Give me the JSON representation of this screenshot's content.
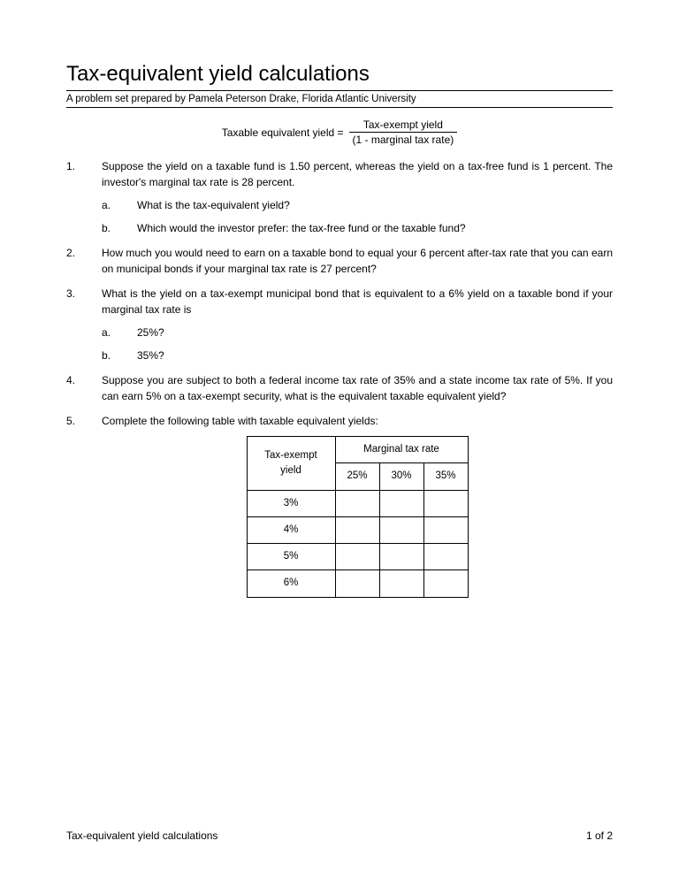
{
  "title": "Tax-equivalent yield calculations",
  "subtitle": "A problem set prepared by Pamela Peterson Drake, Florida Atlantic University",
  "formula": {
    "left": "Taxable equivalent yield =",
    "numerator": "Tax-exempt yield",
    "denominator": "(1 - marginal tax rate)"
  },
  "questions": [
    {
      "num": "1.",
      "text": "Suppose the yield on a taxable fund is 1.50 percent, whereas the yield on a tax-free fund is 1 percent. The investor's marginal tax rate is 28 percent.",
      "subs": [
        {
          "lbl": "a.",
          "text": "What is the tax-equivalent yield?"
        },
        {
          "lbl": "b.",
          "text": "Which would the investor prefer: the tax-free fund or the taxable fund?"
        }
      ]
    },
    {
      "num": "2.",
      "text": "How much you would need to earn on a taxable bond to equal your 6 percent after-tax rate that you can earn on municipal bonds if your marginal tax rate is 27 percent?"
    },
    {
      "num": "3.",
      "text": "What is the yield on a tax-exempt municipal bond that is equivalent to a 6% yield on a taxable bond if your marginal tax rate is",
      "subs": [
        {
          "lbl": "a.",
          "text": "25%?"
        },
        {
          "lbl": "b.",
          "text": "35%?"
        }
      ]
    },
    {
      "num": "4.",
      "text": "Suppose you are subject to both a federal income tax rate of 35% and a state income tax rate of 5%.  If you can earn 5% on a tax-exempt security, what is the equivalent taxable equivalent yield?"
    },
    {
      "num": "5.",
      "text": "Complete the following table with taxable equivalent yields:"
    }
  ],
  "table": {
    "row_header": "Tax-exempt yield",
    "col_header": "Marginal tax rate",
    "cols": [
      "25%",
      "30%",
      "35%"
    ],
    "rows": [
      "3%",
      "4%",
      "5%",
      "6%"
    ]
  },
  "footer": {
    "left": "Tax-equivalent yield calculations",
    "right": "1 of 2"
  },
  "colors": {
    "text": "#000000",
    "background": "#ffffff",
    "border": "#000000"
  },
  "fonts": {
    "title_size": 24,
    "body_size": 12,
    "family": "Verdana"
  }
}
